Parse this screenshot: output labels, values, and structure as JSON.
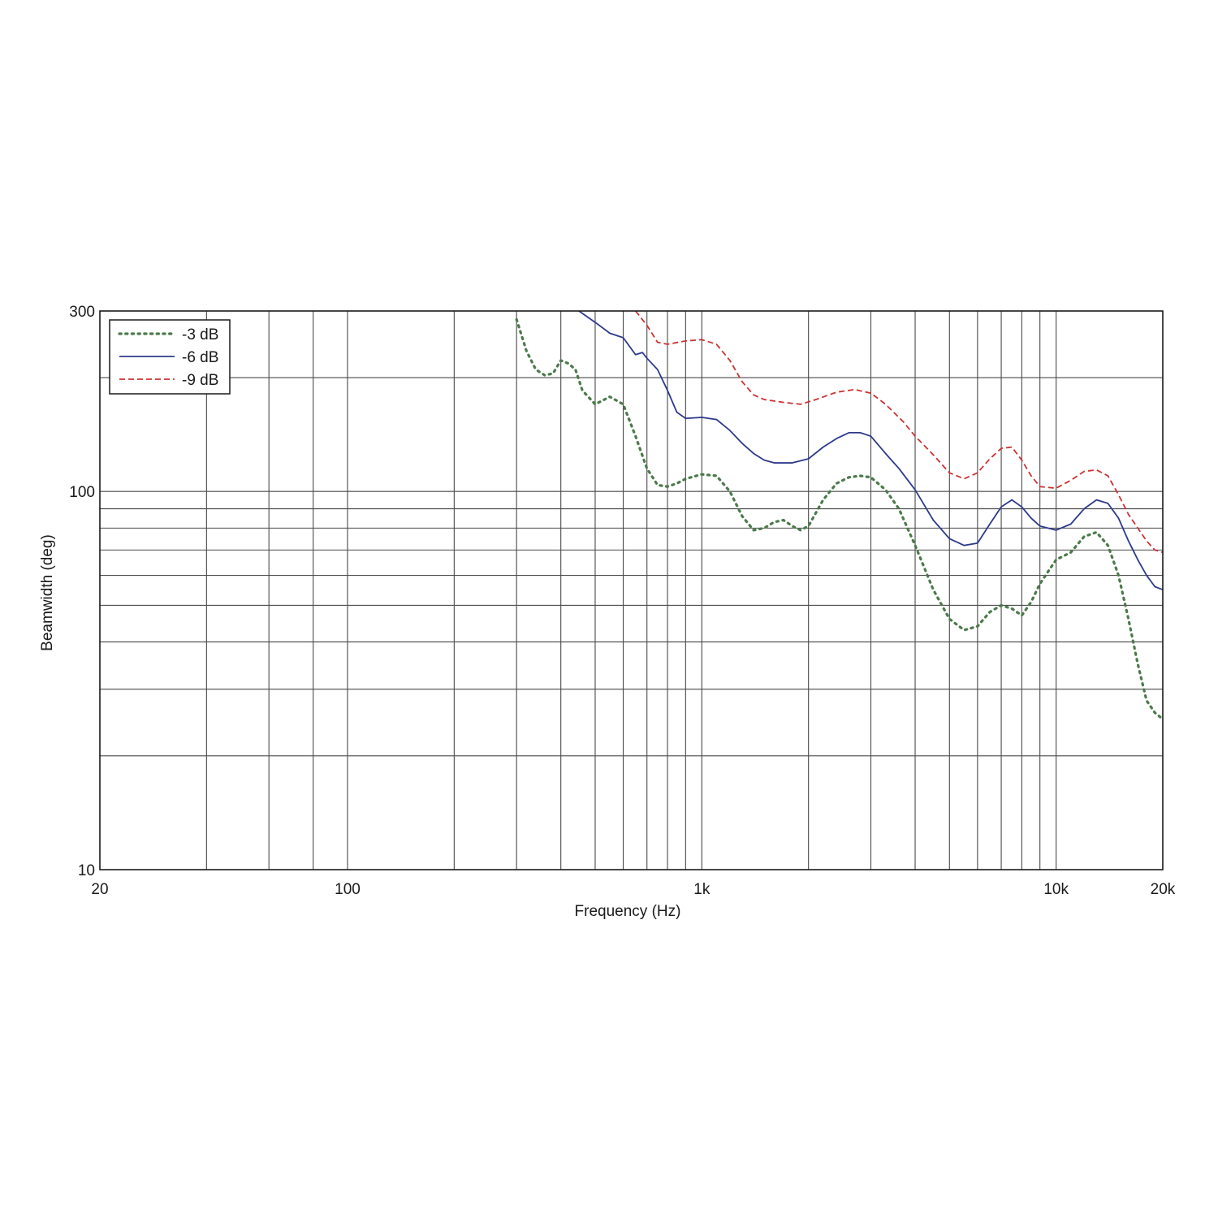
{
  "chart_data": {
    "type": "line",
    "xlabel": "Frequency (Hz)",
    "ylabel": "Beamwidth (deg)",
    "x_scale": "log",
    "y_scale": "log",
    "xlim": [
      20,
      20000
    ],
    "ylim": [
      10,
      300
    ],
    "x_tick_labels": [
      {
        "value": 20,
        "label": "20"
      },
      {
        "value": 100,
        "label": "100"
      },
      {
        "value": 1000,
        "label": "1k"
      },
      {
        "value": 10000,
        "label": "10k"
      },
      {
        "value": 20000,
        "label": "20k"
      }
    ],
    "y_tick_labels": [
      {
        "value": 10,
        "label": "10"
      },
      {
        "value": 100,
        "label": "100"
      },
      {
        "value": 300,
        "label": "300"
      }
    ],
    "x_gridlines": [
      40,
      60,
      80,
      100,
      200,
      300,
      400,
      500,
      600,
      700,
      800,
      900,
      1000,
      2000,
      3000,
      4000,
      5000,
      6000,
      7000,
      8000,
      9000,
      10000
    ],
    "y_gridlines": [
      20,
      30,
      40,
      50,
      60,
      70,
      80,
      90,
      100,
      200
    ],
    "grid": true,
    "legend_position": "top-left",
    "series": [
      {
        "name": "-3 dB",
        "color": "#4c7a4c",
        "style": "dotted",
        "points": [
          [
            300,
            285
          ],
          [
            320,
            235
          ],
          [
            340,
            210
          ],
          [
            360,
            203
          ],
          [
            380,
            205
          ],
          [
            400,
            222
          ],
          [
            420,
            218
          ],
          [
            440,
            210
          ],
          [
            460,
            185
          ],
          [
            500,
            170
          ],
          [
            550,
            178
          ],
          [
            600,
            170
          ],
          [
            650,
            140
          ],
          [
            700,
            115
          ],
          [
            750,
            104
          ],
          [
            800,
            103
          ],
          [
            850,
            105
          ],
          [
            900,
            108
          ],
          [
            1000,
            111
          ],
          [
            1100,
            110
          ],
          [
            1200,
            100
          ],
          [
            1300,
            86
          ],
          [
            1400,
            79
          ],
          [
            1500,
            80
          ],
          [
            1600,
            83
          ],
          [
            1700,
            84
          ],
          [
            1800,
            81
          ],
          [
            1900,
            79
          ],
          [
            2000,
            81
          ],
          [
            2200,
            95
          ],
          [
            2400,
            105
          ],
          [
            2600,
            109
          ],
          [
            2800,
            110
          ],
          [
            3000,
            109
          ],
          [
            3300,
            101
          ],
          [
            3600,
            90
          ],
          [
            4000,
            72
          ],
          [
            4500,
            55
          ],
          [
            5000,
            46
          ],
          [
            5500,
            43
          ],
          [
            6000,
            44
          ],
          [
            6500,
            48
          ],
          [
            7000,
            50
          ],
          [
            7500,
            49
          ],
          [
            8000,
            47
          ],
          [
            8500,
            51
          ],
          [
            9000,
            57
          ],
          [
            10000,
            66
          ],
          [
            11000,
            69
          ],
          [
            12000,
            76
          ],
          [
            13000,
            78
          ],
          [
            14000,
            72
          ],
          [
            15000,
            60
          ],
          [
            16000,
            46
          ],
          [
            17000,
            35
          ],
          [
            18000,
            28
          ],
          [
            19000,
            26
          ],
          [
            20000,
            25
          ]
        ]
      },
      {
        "name": "-6 dB",
        "color": "#2e3a8c",
        "style": "solid",
        "points": [
          [
            450,
            300
          ],
          [
            500,
            280
          ],
          [
            550,
            262
          ],
          [
            600,
            255
          ],
          [
            650,
            230
          ],
          [
            680,
            233
          ],
          [
            700,
            225
          ],
          [
            750,
            210
          ],
          [
            800,
            185
          ],
          [
            850,
            162
          ],
          [
            900,
            156
          ],
          [
            1000,
            157
          ],
          [
            1100,
            155
          ],
          [
            1200,
            145
          ],
          [
            1300,
            134
          ],
          [
            1400,
            126
          ],
          [
            1500,
            121
          ],
          [
            1600,
            119
          ],
          [
            1700,
            119
          ],
          [
            1800,
            119
          ],
          [
            2000,
            122
          ],
          [
            2200,
            131
          ],
          [
            2400,
            138
          ],
          [
            2600,
            143
          ],
          [
            2800,
            143
          ],
          [
            3000,
            140
          ],
          [
            3300,
            126
          ],
          [
            3600,
            115
          ],
          [
            4000,
            101
          ],
          [
            4500,
            84
          ],
          [
            5000,
            75
          ],
          [
            5500,
            72
          ],
          [
            6000,
            73
          ],
          [
            6500,
            82
          ],
          [
            7000,
            91
          ],
          [
            7500,
            95
          ],
          [
            8000,
            91
          ],
          [
            8500,
            85
          ],
          [
            9000,
            81
          ],
          [
            10000,
            79
          ],
          [
            11000,
            82
          ],
          [
            12000,
            90
          ],
          [
            13000,
            95
          ],
          [
            14000,
            93
          ],
          [
            15000,
            85
          ],
          [
            16000,
            74
          ],
          [
            17000,
            66
          ],
          [
            18000,
            60
          ],
          [
            19000,
            56
          ],
          [
            20000,
            55
          ]
        ]
      },
      {
        "name": "-9 dB",
        "color": "#cc3333",
        "style": "dashed",
        "points": [
          [
            650,
            300
          ],
          [
            700,
            275
          ],
          [
            750,
            248
          ],
          [
            800,
            245
          ],
          [
            900,
            250
          ],
          [
            1000,
            252
          ],
          [
            1100,
            245
          ],
          [
            1200,
            222
          ],
          [
            1300,
            195
          ],
          [
            1400,
            180
          ],
          [
            1500,
            175
          ],
          [
            1700,
            172
          ],
          [
            1900,
            170
          ],
          [
            2100,
            175
          ],
          [
            2400,
            183
          ],
          [
            2700,
            186
          ],
          [
            3000,
            182
          ],
          [
            3300,
            170
          ],
          [
            3700,
            153
          ],
          [
            4000,
            140
          ],
          [
            4500,
            125
          ],
          [
            5000,
            112
          ],
          [
            5500,
            108
          ],
          [
            6000,
            112
          ],
          [
            6500,
            122
          ],
          [
            7000,
            130
          ],
          [
            7500,
            131
          ],
          [
            8000,
            121
          ],
          [
            8500,
            110
          ],
          [
            9000,
            103
          ],
          [
            10000,
            102
          ],
          [
            11000,
            107
          ],
          [
            12000,
            113
          ],
          [
            13000,
            114
          ],
          [
            14000,
            110
          ],
          [
            15000,
            98
          ],
          [
            16000,
            87
          ],
          [
            17000,
            80
          ],
          [
            18000,
            74
          ],
          [
            19000,
            70
          ],
          [
            20000,
            69
          ]
        ]
      }
    ]
  }
}
